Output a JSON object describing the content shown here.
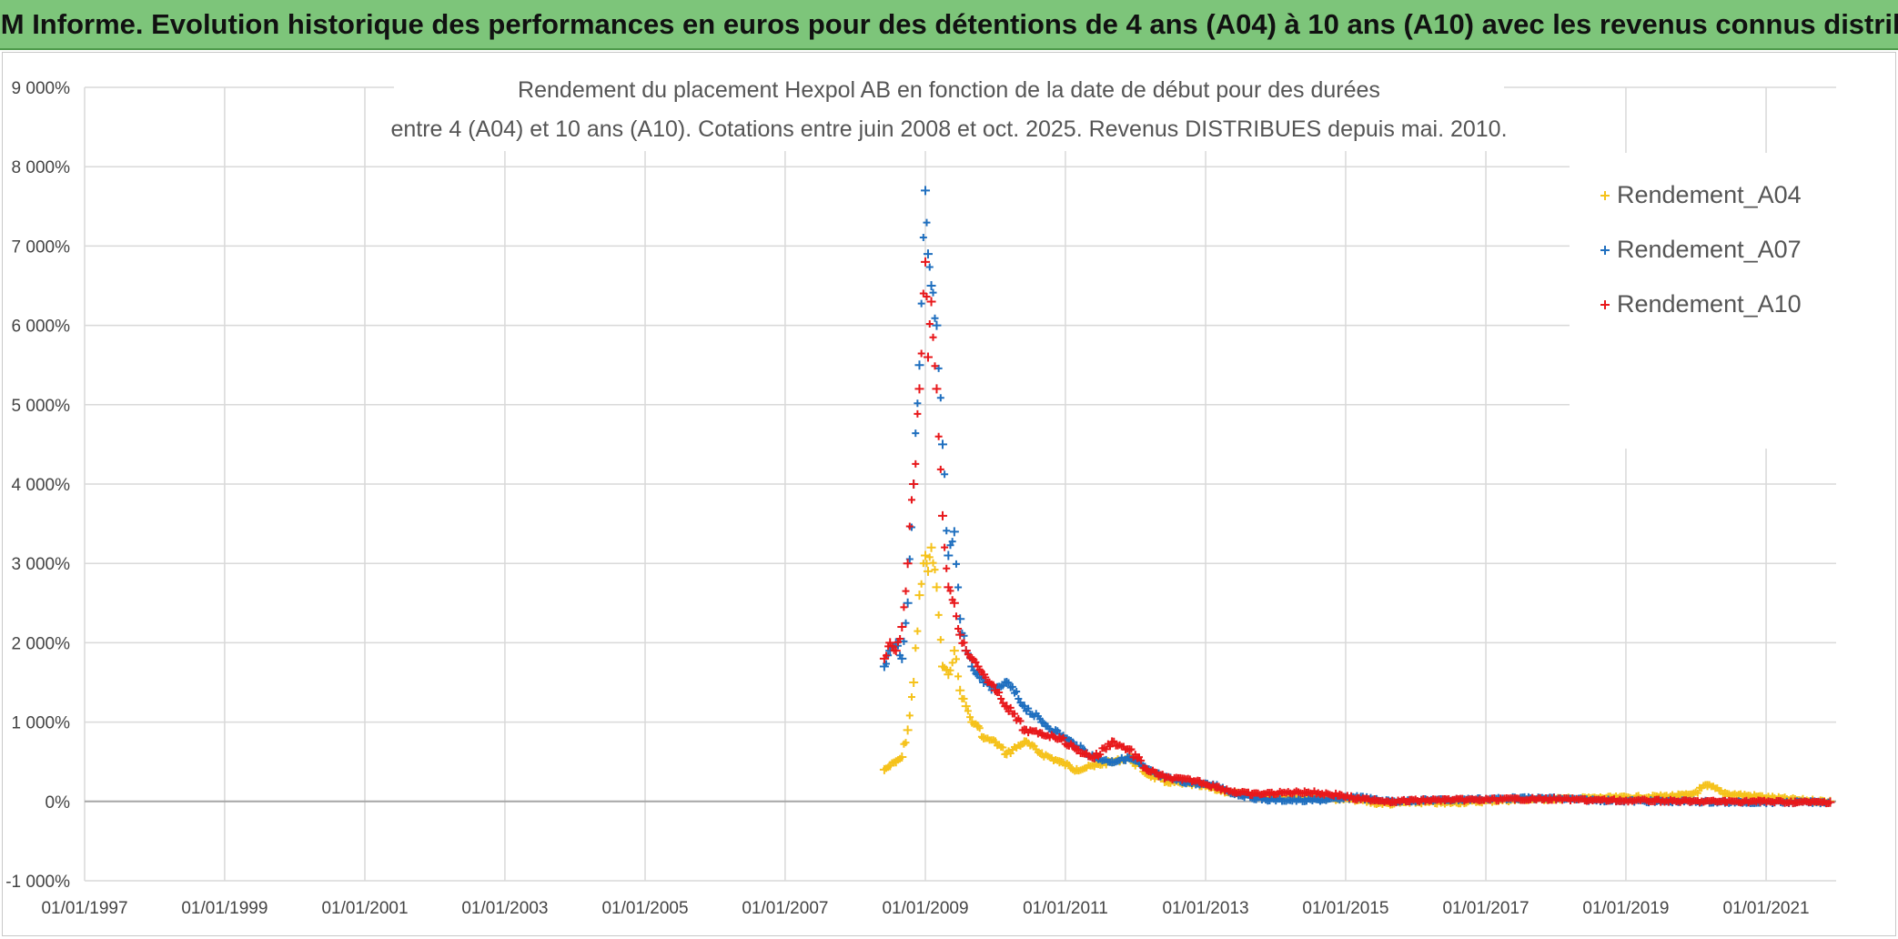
{
  "banner": {
    "title": "ADAM Informe. Evolution historique des performances en euros pour des détentions de 4 ans (A04) à 10 ans (A10) avec les revenus connus distribués"
  },
  "chart_data": {
    "type": "scatter",
    "title_line1": "Rendement du placement Hexpol AB en fonction de la date de début pour des durées",
    "title_line2": "entre 4 (A04) et 10 ans (A10). Cotations entre juin 2008 et oct. 2025. Revenus DISTRIBUES depuis mai. 2010.",
    "xlabel": "",
    "ylabel": "",
    "x_axis": {
      "type": "date",
      "min": "1997-01-01",
      "max": "2022-01-01",
      "tick_labels": [
        "01/01/1997",
        "01/01/1999",
        "01/01/2001",
        "01/01/2003",
        "01/01/2005",
        "01/01/2007",
        "01/01/2009",
        "01/01/2011",
        "01/01/2013",
        "01/01/2015",
        "01/01/2017",
        "01/01/2019",
        "01/01/2021"
      ]
    },
    "y_axis": {
      "unit": "%",
      "min": -1000,
      "max": 9000,
      "tick_labels": [
        "-1 000%",
        "0%",
        "1 000%",
        "2 000%",
        "3 000%",
        "4 000%",
        "5 000%",
        "6 000%",
        "7 000%",
        "8 000%",
        "9 000%"
      ]
    },
    "grid": true,
    "legend_position": "top-right",
    "marker": "+",
    "series": [
      {
        "name": "Rendement_A04",
        "color": "#f5c21b",
        "points": [
          [
            "2008-06-01",
            400
          ],
          [
            "2008-07-01",
            450
          ],
          [
            "2008-08-01",
            500
          ],
          [
            "2008-09-01",
            560
          ],
          [
            "2008-10-01",
            900
          ],
          [
            "2008-11-01",
            1500
          ],
          [
            "2008-12-01",
            2600
          ],
          [
            "2009-01-01",
            3100
          ],
          [
            "2009-01-15",
            2900
          ],
          [
            "2009-02-01",
            3200
          ],
          [
            "2009-03-01",
            2700
          ],
          [
            "2009-04-01",
            1700
          ],
          [
            "2009-05-01",
            1600
          ],
          [
            "2009-06-01",
            1900
          ],
          [
            "2009-07-01",
            1400
          ],
          [
            "2009-08-01",
            1200
          ],
          [
            "2009-09-01",
            1000
          ],
          [
            "2009-10-01",
            950
          ],
          [
            "2009-11-01",
            800
          ],
          [
            "2010-01-01",
            750
          ],
          [
            "2010-03-01",
            600
          ],
          [
            "2010-06-01",
            750
          ],
          [
            "2010-09-01",
            600
          ],
          [
            "2010-12-01",
            500
          ],
          [
            "2011-03-01",
            400
          ],
          [
            "2011-06-01",
            450
          ],
          [
            "2011-09-01",
            500
          ],
          [
            "2011-12-01",
            550
          ],
          [
            "2012-03-01",
            350
          ],
          [
            "2012-06-01",
            250
          ],
          [
            "2012-09-01",
            230
          ],
          [
            "2012-12-01",
            200
          ],
          [
            "2013-03-01",
            150
          ],
          [
            "2013-06-01",
            100
          ],
          [
            "2013-09-01",
            80
          ],
          [
            "2013-12-01",
            70
          ],
          [
            "2014-06-01",
            60
          ],
          [
            "2014-12-01",
            30
          ],
          [
            "2015-03-01",
            20
          ],
          [
            "2015-06-01",
            -20
          ],
          [
            "2015-09-01",
            -30
          ],
          [
            "2015-12-01",
            -10
          ],
          [
            "2016-06-01",
            -20
          ],
          [
            "2016-12-01",
            0
          ],
          [
            "2017-06-01",
            20
          ],
          [
            "2017-12-01",
            30
          ],
          [
            "2018-06-01",
            40
          ],
          [
            "2018-12-01",
            50
          ],
          [
            "2019-06-01",
            60
          ],
          [
            "2019-12-01",
            80
          ],
          [
            "2020-03-01",
            200
          ],
          [
            "2020-06-01",
            100
          ],
          [
            "2020-12-01",
            60
          ],
          [
            "2021-06-01",
            20
          ],
          [
            "2021-12-01",
            0
          ]
        ]
      },
      {
        "name": "Rendement_A07",
        "color": "#1f6fbf",
        "points": [
          [
            "2008-06-01",
            1700
          ],
          [
            "2008-07-01",
            1900
          ],
          [
            "2008-08-01",
            2000
          ],
          [
            "2008-09-01",
            1800
          ],
          [
            "2008-10-01",
            2500
          ],
          [
            "2008-11-01",
            4000
          ],
          [
            "2008-12-01",
            5500
          ],
          [
            "2009-01-01",
            7700
          ],
          [
            "2009-01-15",
            6900
          ],
          [
            "2009-02-01",
            6500
          ],
          [
            "2009-03-01",
            6000
          ],
          [
            "2009-04-01",
            4500
          ],
          [
            "2009-05-01",
            3100
          ],
          [
            "2009-06-01",
            3400
          ],
          [
            "2009-07-01",
            2300
          ],
          [
            "2009-08-01",
            1900
          ],
          [
            "2009-09-01",
            1700
          ],
          [
            "2009-10-01",
            1600
          ],
          [
            "2009-11-01",
            1500
          ],
          [
            "2010-01-01",
            1400
          ],
          [
            "2010-03-01",
            1500
          ],
          [
            "2010-06-01",
            1200
          ],
          [
            "2010-09-01",
            1000
          ],
          [
            "2010-12-01",
            850
          ],
          [
            "2011-03-01",
            700
          ],
          [
            "2011-06-01",
            550
          ],
          [
            "2011-09-01",
            500
          ],
          [
            "2011-12-01",
            550
          ],
          [
            "2012-03-01",
            400
          ],
          [
            "2012-06-01",
            300
          ],
          [
            "2012-09-01",
            250
          ],
          [
            "2012-12-01",
            220
          ],
          [
            "2013-03-01",
            200
          ],
          [
            "2013-06-01",
            100
          ],
          [
            "2013-09-01",
            50
          ],
          [
            "2013-12-01",
            20
          ],
          [
            "2014-06-01",
            10
          ],
          [
            "2014-12-01",
            30
          ],
          [
            "2015-03-01",
            60
          ],
          [
            "2015-06-01",
            20
          ],
          [
            "2015-09-01",
            0
          ],
          [
            "2015-12-01",
            10
          ],
          [
            "2016-06-01",
            20
          ],
          [
            "2016-12-01",
            30
          ],
          [
            "2017-06-01",
            40
          ],
          [
            "2017-12-01",
            40
          ],
          [
            "2018-06-01",
            20
          ],
          [
            "2018-12-01",
            10
          ],
          [
            "2019-06-01",
            0
          ],
          [
            "2019-12-01",
            0
          ],
          [
            "2020-06-01",
            -10
          ],
          [
            "2020-12-01",
            -10
          ],
          [
            "2021-06-01",
            -10
          ],
          [
            "2021-12-01",
            -10
          ]
        ]
      },
      {
        "name": "Rendement_A10",
        "color": "#e8181b",
        "points": [
          [
            "2008-06-01",
            1800
          ],
          [
            "2008-07-01",
            2000
          ],
          [
            "2008-08-01",
            1900
          ],
          [
            "2008-09-01",
            2200
          ],
          [
            "2008-10-01",
            3000
          ],
          [
            "2008-11-01",
            4000
          ],
          [
            "2008-12-01",
            5200
          ],
          [
            "2009-01-01",
            6800
          ],
          [
            "2009-01-15",
            5600
          ],
          [
            "2009-02-01",
            6300
          ],
          [
            "2009-03-01",
            5200
          ],
          [
            "2009-04-01",
            3600
          ],
          [
            "2009-05-01",
            2700
          ],
          [
            "2009-06-01",
            2500
          ],
          [
            "2009-07-01",
            2100
          ],
          [
            "2009-08-01",
            1900
          ],
          [
            "2009-09-01",
            1800
          ],
          [
            "2009-10-01",
            1700
          ],
          [
            "2009-11-01",
            1600
          ],
          [
            "2010-01-01",
            1400
          ],
          [
            "2010-03-01",
            1200
          ],
          [
            "2010-06-01",
            900
          ],
          [
            "2010-09-01",
            850
          ],
          [
            "2010-12-01",
            800
          ],
          [
            "2011-03-01",
            650
          ],
          [
            "2011-06-01",
            550
          ],
          [
            "2011-09-01",
            750
          ],
          [
            "2011-12-01",
            650
          ],
          [
            "2012-03-01",
            400
          ],
          [
            "2012-06-01",
            300
          ],
          [
            "2012-09-01",
            280
          ],
          [
            "2012-12-01",
            250
          ],
          [
            "2013-03-01",
            180
          ],
          [
            "2013-06-01",
            120
          ],
          [
            "2013-09-01",
            90
          ],
          [
            "2013-12-01",
            100
          ],
          [
            "2014-06-01",
            120
          ],
          [
            "2014-12-01",
            80
          ],
          [
            "2015-03-01",
            30
          ],
          [
            "2015-06-01",
            20
          ],
          [
            "2015-09-01",
            0
          ],
          [
            "2015-12-01",
            10
          ],
          [
            "2016-06-01",
            20
          ],
          [
            "2016-12-01",
            20
          ],
          [
            "2017-06-01",
            30
          ],
          [
            "2017-12-01",
            30
          ],
          [
            "2018-06-01",
            20
          ],
          [
            "2018-12-01",
            10
          ],
          [
            "2019-06-01",
            10
          ],
          [
            "2019-12-01",
            0
          ],
          [
            "2020-06-01",
            0
          ],
          [
            "2020-12-01",
            0
          ],
          [
            "2021-06-01",
            -10
          ],
          [
            "2021-12-01",
            -10
          ]
        ]
      }
    ]
  }
}
